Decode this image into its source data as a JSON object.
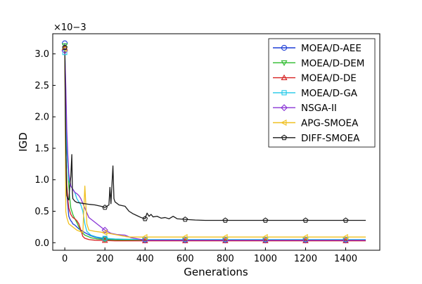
{
  "chart_data": {
    "type": "line",
    "title": "",
    "xlabel": "Generations",
    "ylabel": "IGD",
    "y_multiplier_label": "×10−3",
    "xlim": [
      -60,
      1570
    ],
    "ylim": [
      -0.12,
      3.32
    ],
    "x_ticks": [
      0,
      200,
      400,
      600,
      800,
      1000,
      1200,
      1400
    ],
    "y_ticks": [
      0.0,
      0.5,
      1.0,
      1.5,
      2.0,
      2.5,
      3.0
    ],
    "y_tick_labels": [
      "0.0",
      "0.5",
      "1.0",
      "1.5",
      "2.0",
      "2.5",
      "3.0"
    ],
    "grid": false,
    "legend_position": "top-right",
    "series": [
      {
        "name": "MOEA/D-AEE",
        "color": "#1f3fd6",
        "marker": "circle",
        "x": [
          0,
          5,
          10,
          15,
          20,
          25,
          30,
          35,
          40,
          50,
          60,
          70,
          80,
          100,
          130,
          160,
          200,
          250,
          300,
          400,
          600,
          800,
          1000,
          1200,
          1400,
          1500
        ],
        "y": [
          3.17,
          1.6,
          0.8,
          0.6,
          0.42,
          0.38,
          0.35,
          0.33,
          0.3,
          0.28,
          0.25,
          0.22,
          0.2,
          0.16,
          0.11,
          0.08,
          0.06,
          0.05,
          0.045,
          0.04,
          0.04,
          0.04,
          0.04,
          0.04,
          0.04,
          0.04
        ]
      },
      {
        "name": "MOEA/D-DEM",
        "color": "#2dbb2d",
        "marker": "triangle-down",
        "x": [
          0,
          5,
          10,
          15,
          20,
          25,
          30,
          40,
          50,
          60,
          70,
          80,
          100,
          130,
          160,
          200,
          250,
          300,
          400,
          600,
          800,
          1000,
          1200,
          1400,
          1500
        ],
        "y": [
          3.13,
          2.2,
          1.5,
          1.2,
          0.9,
          0.7,
          0.55,
          0.45,
          0.38,
          0.32,
          0.25,
          0.18,
          0.12,
          0.08,
          0.06,
          0.05,
          0.045,
          0.04,
          0.04,
          0.04,
          0.04,
          0.04,
          0.04,
          0.04,
          0.04
        ]
      },
      {
        "name": "MOEA/D-DE",
        "color": "#d62020",
        "marker": "triangle-up",
        "x": [
          0,
          5,
          10,
          15,
          20,
          25,
          30,
          40,
          50,
          60,
          70,
          80,
          90,
          100,
          120,
          150,
          200,
          250,
          300,
          400,
          600,
          800,
          1000,
          1200,
          1400,
          1500
        ],
        "y": [
          3.1,
          1.4,
          0.9,
          0.7,
          0.55,
          0.5,
          0.45,
          0.4,
          0.38,
          0.35,
          0.3,
          0.2,
          0.1,
          0.07,
          0.05,
          0.04,
          0.035,
          0.03,
          0.03,
          0.03,
          0.03,
          0.03,
          0.03,
          0.03,
          0.03,
          0.03
        ]
      },
      {
        "name": "MOEA/D-GA",
        "color": "#20c8e8",
        "marker": "square",
        "x": [
          0,
          5,
          10,
          15,
          20,
          30,
          40,
          50,
          60,
          70,
          80,
          90,
          100,
          110,
          130,
          160,
          200,
          250,
          300,
          400,
          600,
          800,
          1000,
          1200,
          1400,
          1500
        ],
        "y": [
          3.02,
          2.4,
          1.5,
          1.2,
          1.0,
          0.9,
          0.85,
          0.8,
          0.7,
          0.65,
          0.6,
          0.5,
          0.3,
          0.18,
          0.12,
          0.09,
          0.07,
          0.06,
          0.055,
          0.05,
          0.05,
          0.05,
          0.05,
          0.05,
          0.05,
          0.05
        ]
      },
      {
        "name": "NSGA-II",
        "color": "#8a35d6",
        "marker": "diamond",
        "x": [
          0,
          5,
          10,
          15,
          20,
          25,
          30,
          40,
          50,
          60,
          70,
          80,
          100,
          120,
          140,
          160,
          180,
          200,
          230,
          260,
          300,
          330,
          400,
          600,
          800,
          1000,
          1200,
          1400,
          1500
        ],
        "y": [
          3.05,
          2.5,
          1.8,
          1.4,
          1.1,
          1.0,
          0.9,
          0.85,
          0.8,
          0.78,
          0.75,
          0.7,
          0.55,
          0.4,
          0.35,
          0.3,
          0.25,
          0.2,
          0.15,
          0.13,
          0.12,
          0.08,
          0.04,
          0.04,
          0.04,
          0.04,
          0.04,
          0.04,
          0.04
        ]
      },
      {
        "name": "APG-SMOEA",
        "color": "#f0c020",
        "marker": "triangle-left",
        "x": [
          0,
          5,
          10,
          20,
          40,
          60,
          90,
          100,
          110,
          120,
          150,
          200,
          250,
          300,
          320,
          400,
          600,
          800,
          1000,
          1200,
          1400,
          1500
        ],
        "y": [
          3.08,
          0.5,
          0.4,
          0.3,
          0.25,
          0.2,
          0.16,
          0.9,
          0.3,
          0.2,
          0.18,
          0.16,
          0.13,
          0.1,
          0.09,
          0.09,
          0.09,
          0.09,
          0.09,
          0.09,
          0.09,
          0.09
        ]
      },
      {
        "name": "DIFF-SMOEA",
        "color": "#1a1a1a",
        "marker": "pentagon",
        "x": [
          0,
          3,
          5,
          8,
          10,
          15,
          20,
          25,
          30,
          35,
          38,
          40,
          45,
          50,
          60,
          80,
          100,
          120,
          150,
          180,
          200,
          220,
          225,
          230,
          240,
          245,
          250,
          270,
          300,
          320,
          340,
          360,
          380,
          400,
          410,
          420,
          430,
          440,
          460,
          480,
          500,
          520,
          540,
          560,
          600,
          650,
          700,
          800,
          1000,
          1200,
          1400,
          1500
        ],
        "y": [
          3.1,
          2.0,
          1.55,
          1.0,
          0.75,
          0.7,
          0.68,
          0.9,
          1.05,
          1.4,
          0.8,
          0.7,
          0.68,
          0.66,
          0.64,
          0.63,
          0.62,
          0.61,
          0.6,
          0.58,
          0.56,
          0.6,
          0.88,
          0.62,
          1.22,
          0.7,
          0.65,
          0.6,
          0.58,
          0.5,
          0.46,
          0.43,
          0.4,
          0.38,
          0.47,
          0.42,
          0.45,
          0.41,
          0.42,
          0.39,
          0.4,
          0.38,
          0.42,
          0.38,
          0.37,
          0.36,
          0.355,
          0.355,
          0.355,
          0.355,
          0.355,
          0.355
        ]
      }
    ],
    "marker_x": [
      0,
      200,
      400,
      600,
      800,
      1000,
      1200,
      1400
    ]
  }
}
